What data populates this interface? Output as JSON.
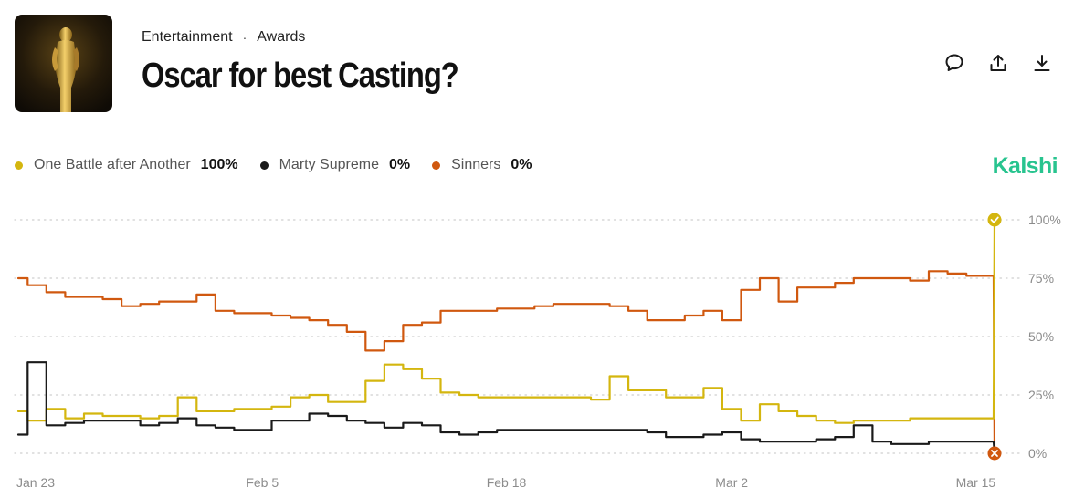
{
  "header": {
    "breadcrumb": [
      "Entertainment",
      "Awards"
    ],
    "breadcrumb_separator": "·",
    "title": "Oscar for best Casting?",
    "thumbnail_icon": "oscar-statuette-image"
  },
  "actions": [
    {
      "name": "comment-icon"
    },
    {
      "name": "share-icon"
    },
    {
      "name": "download-icon"
    }
  ],
  "brand": {
    "name": "Kalshi",
    "color": "#28c48f"
  },
  "legend": [
    {
      "name": "One Battle after Another",
      "value": "100%",
      "color": "#d4b60f"
    },
    {
      "name": "Marty Supreme",
      "value": "0%",
      "color": "#1a1a1a"
    },
    {
      "name": "Sinners",
      "value": "0%",
      "color": "#d0580f"
    }
  ],
  "chart_data": {
    "type": "line",
    "x_ticks": [
      "Jan 23",
      "Feb 5",
      "Feb 18",
      "Mar 2",
      "Mar 15"
    ],
    "x_range": [
      "2026-01-23",
      "2026-03-16"
    ],
    "y_ticks": [
      "100%",
      "75%",
      "50%",
      "25%",
      "0%"
    ],
    "ylim": [
      0,
      100
    ],
    "grid": "dotted horizontal",
    "y_axis_side": "right",
    "final_markers": [
      {
        "series": "One Battle after Another",
        "value": 100,
        "marker": "check-circle"
      },
      {
        "series": "Sinners",
        "value": 0,
        "marker": "x-circle"
      }
    ],
    "series": [
      {
        "name": "One Battle after Another",
        "color": "#d4b60f",
        "points": [
          [
            "2026-01-23",
            18
          ],
          [
            "2026-01-24",
            14
          ],
          [
            "2026-01-25",
            19
          ],
          [
            "2026-01-26",
            15
          ],
          [
            "2026-01-27",
            17
          ],
          [
            "2026-01-28",
            16
          ],
          [
            "2026-01-29",
            16
          ],
          [
            "2026-01-30",
            15
          ],
          [
            "2026-01-31",
            16
          ],
          [
            "2026-02-01",
            24
          ],
          [
            "2026-02-02",
            18
          ],
          [
            "2026-02-03",
            18
          ],
          [
            "2026-02-04",
            19
          ],
          [
            "2026-02-05",
            19
          ],
          [
            "2026-02-06",
            20
          ],
          [
            "2026-02-07",
            24
          ],
          [
            "2026-02-08",
            25
          ],
          [
            "2026-02-09",
            22
          ],
          [
            "2026-02-10",
            22
          ],
          [
            "2026-02-11",
            31
          ],
          [
            "2026-02-12",
            38
          ],
          [
            "2026-02-13",
            36
          ],
          [
            "2026-02-14",
            32
          ],
          [
            "2026-02-15",
            26
          ],
          [
            "2026-02-16",
            25
          ],
          [
            "2026-02-17",
            24
          ],
          [
            "2026-02-18",
            24
          ],
          [
            "2026-02-19",
            24
          ],
          [
            "2026-02-20",
            24
          ],
          [
            "2026-02-21",
            24
          ],
          [
            "2026-02-22",
            24
          ],
          [
            "2026-02-23",
            23
          ],
          [
            "2026-02-24",
            33
          ],
          [
            "2026-02-25",
            27
          ],
          [
            "2026-02-26",
            27
          ],
          [
            "2026-02-27",
            24
          ],
          [
            "2026-02-28",
            24
          ],
          [
            "2026-03-01",
            28
          ],
          [
            "2026-03-02",
            19
          ],
          [
            "2026-03-03",
            14
          ],
          [
            "2026-03-04",
            21
          ],
          [
            "2026-03-05",
            18
          ],
          [
            "2026-03-06",
            16
          ],
          [
            "2026-03-07",
            14
          ],
          [
            "2026-03-08",
            13
          ],
          [
            "2026-03-09",
            14
          ],
          [
            "2026-03-10",
            14
          ],
          [
            "2026-03-11",
            14
          ],
          [
            "2026-03-12",
            15
          ],
          [
            "2026-03-13",
            15
          ],
          [
            "2026-03-14",
            15
          ],
          [
            "2026-03-15",
            15
          ],
          [
            "2026-03-16",
            100
          ]
        ]
      },
      {
        "name": "Marty Supreme",
        "color": "#1a1a1a",
        "points": [
          [
            "2026-01-23",
            8
          ],
          [
            "2026-01-24",
            39
          ],
          [
            "2026-01-25",
            12
          ],
          [
            "2026-01-26",
            13
          ],
          [
            "2026-01-27",
            14
          ],
          [
            "2026-01-28",
            14
          ],
          [
            "2026-01-29",
            14
          ],
          [
            "2026-01-30",
            12
          ],
          [
            "2026-01-31",
            13
          ],
          [
            "2026-02-01",
            15
          ],
          [
            "2026-02-02",
            12
          ],
          [
            "2026-02-03",
            11
          ],
          [
            "2026-02-04",
            10
          ],
          [
            "2026-02-05",
            10
          ],
          [
            "2026-02-06",
            14
          ],
          [
            "2026-02-07",
            14
          ],
          [
            "2026-02-08",
            17
          ],
          [
            "2026-02-09",
            16
          ],
          [
            "2026-02-10",
            14
          ],
          [
            "2026-02-11",
            13
          ],
          [
            "2026-02-12",
            11
          ],
          [
            "2026-02-13",
            13
          ],
          [
            "2026-02-14",
            12
          ],
          [
            "2026-02-15",
            9
          ],
          [
            "2026-02-16",
            8
          ],
          [
            "2026-02-17",
            9
          ],
          [
            "2026-02-18",
            10
          ],
          [
            "2026-02-19",
            10
          ],
          [
            "2026-02-20",
            10
          ],
          [
            "2026-02-21",
            10
          ],
          [
            "2026-02-22",
            10
          ],
          [
            "2026-02-23",
            10
          ],
          [
            "2026-02-24",
            10
          ],
          [
            "2026-02-25",
            10
          ],
          [
            "2026-02-26",
            9
          ],
          [
            "2026-02-27",
            7
          ],
          [
            "2026-02-28",
            7
          ],
          [
            "2026-03-01",
            8
          ],
          [
            "2026-03-02",
            9
          ],
          [
            "2026-03-03",
            6
          ],
          [
            "2026-03-04",
            5
          ],
          [
            "2026-03-05",
            5
          ],
          [
            "2026-03-06",
            5
          ],
          [
            "2026-03-07",
            6
          ],
          [
            "2026-03-08",
            7
          ],
          [
            "2026-03-09",
            12
          ],
          [
            "2026-03-10",
            5
          ],
          [
            "2026-03-11",
            4
          ],
          [
            "2026-03-12",
            4
          ],
          [
            "2026-03-13",
            5
          ],
          [
            "2026-03-14",
            5
          ],
          [
            "2026-03-15",
            5
          ],
          [
            "2026-03-16",
            0
          ]
        ]
      },
      {
        "name": "Sinners",
        "color": "#d0580f",
        "points": [
          [
            "2026-01-23",
            75
          ],
          [
            "2026-01-24",
            72
          ],
          [
            "2026-01-25",
            69
          ],
          [
            "2026-01-26",
            67
          ],
          [
            "2026-01-27",
            67
          ],
          [
            "2026-01-28",
            66
          ],
          [
            "2026-01-29",
            63
          ],
          [
            "2026-01-30",
            64
          ],
          [
            "2026-01-31",
            65
          ],
          [
            "2026-02-01",
            65
          ],
          [
            "2026-02-02",
            68
          ],
          [
            "2026-02-03",
            61
          ],
          [
            "2026-02-04",
            60
          ],
          [
            "2026-02-05",
            60
          ],
          [
            "2026-02-06",
            59
          ],
          [
            "2026-02-07",
            58
          ],
          [
            "2026-02-08",
            57
          ],
          [
            "2026-02-09",
            55
          ],
          [
            "2026-02-10",
            52
          ],
          [
            "2026-02-11",
            44
          ],
          [
            "2026-02-12",
            48
          ],
          [
            "2026-02-13",
            55
          ],
          [
            "2026-02-14",
            56
          ],
          [
            "2026-02-15",
            61
          ],
          [
            "2026-02-16",
            61
          ],
          [
            "2026-02-17",
            61
          ],
          [
            "2026-02-18",
            62
          ],
          [
            "2026-02-19",
            62
          ],
          [
            "2026-02-20",
            63
          ],
          [
            "2026-02-21",
            64
          ],
          [
            "2026-02-22",
            64
          ],
          [
            "2026-02-23",
            64
          ],
          [
            "2026-02-24",
            63
          ],
          [
            "2026-02-25",
            61
          ],
          [
            "2026-02-26",
            57
          ],
          [
            "2026-02-27",
            57
          ],
          [
            "2026-02-28",
            59
          ],
          [
            "2026-03-01",
            61
          ],
          [
            "2026-03-02",
            57
          ],
          [
            "2026-03-03",
            70
          ],
          [
            "2026-03-04",
            75
          ],
          [
            "2026-03-05",
            65
          ],
          [
            "2026-03-06",
            71
          ],
          [
            "2026-03-07",
            71
          ],
          [
            "2026-03-08",
            73
          ],
          [
            "2026-03-09",
            75
          ],
          [
            "2026-03-10",
            75
          ],
          [
            "2026-03-11",
            75
          ],
          [
            "2026-03-12",
            74
          ],
          [
            "2026-03-13",
            78
          ],
          [
            "2026-03-14",
            77
          ],
          [
            "2026-03-15",
            76
          ],
          [
            "2026-03-16",
            0
          ]
        ]
      }
    ]
  }
}
